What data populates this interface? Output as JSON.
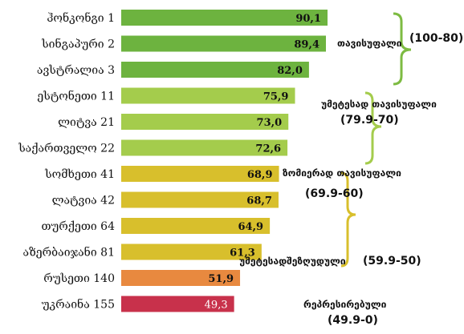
{
  "chart_data": {
    "type": "bar",
    "orientation": "horizontal",
    "categories": [
      "ჰონკონგი 1",
      "სინგაპური 2",
      "ავსტრალია 3",
      "ესტონეთი 11",
      "ლიტვა 21",
      "საქართველო 22",
      "სომხეთი 41",
      "ლატვია 42",
      "თურქეთი 64",
      "აზერბაიჯანი 81",
      "რუსეთი 140",
      "უკრაინა 155"
    ],
    "values": [
      90.1,
      89.4,
      82.0,
      75.9,
      73.0,
      72.6,
      68.9,
      68.7,
      64.9,
      61.3,
      51.9,
      49.3
    ],
    "value_labels": [
      "90,1",
      "89,4",
      "82,0",
      "75,9",
      "73,0",
      "72,6",
      "68,9",
      "68,7",
      "64,9",
      "61,3",
      "51,9",
      "49,3"
    ],
    "bar_colors": [
      "#6db33f",
      "#6db33f",
      "#6db33f",
      "#a4cc4c",
      "#a4cc4c",
      "#a4cc4c",
      "#d8bf2c",
      "#d8bf2c",
      "#d8bf2c",
      "#d8bf2c",
      "#e8893f",
      "#c8314b"
    ],
    "xlim": [
      0,
      100
    ],
    "grid": false,
    "groups": [
      {
        "label": "თავისუფალი",
        "range": "(100-80)",
        "color": "#7dbb42"
      },
      {
        "label": "უმეტესად თავისუფალი",
        "range": "(79.9-70)",
        "color": "#a4cc4c"
      },
      {
        "label": "ზომიერად თავისუფალი",
        "range": "(69.9-60)",
        "color": "#d8bf2c"
      },
      {
        "label": "უმეტესადშეზღუდული",
        "range": "(59.9-50)",
        "color": ""
      },
      {
        "label": "რეპრესირებული",
        "range": "(49.9-0)",
        "color": ""
      }
    ]
  }
}
